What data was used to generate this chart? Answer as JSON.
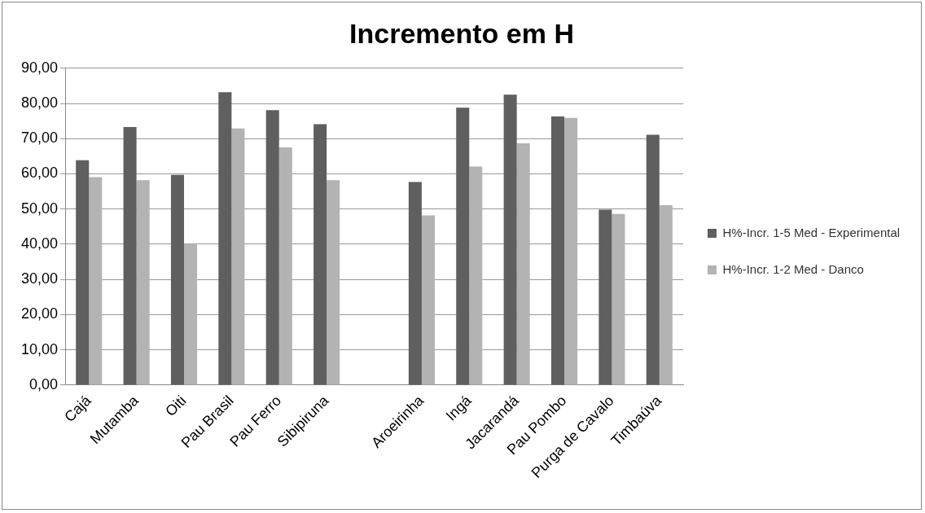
{
  "chart_data": {
    "type": "bar",
    "title": "Incremento em H",
    "categories": [
      "Cajá",
      "Mutamba",
      "Oiti",
      "Pau Brasil",
      "Pau Ferro",
      "Sibipiruna",
      null,
      "Aroeirinha",
      "Ingá",
      "Jacarandá",
      "Pau Pombo",
      "Purga de Cavalo",
      "Timbaúva"
    ],
    "series": [
      {
        "name": "H%-Incr. 1-5 Med - Experimental",
        "color": "#5f5f5f",
        "values": [
          63.9,
          73.3,
          59.7,
          83.2,
          78.1,
          74.1,
          null,
          57.7,
          78.8,
          82.5,
          76.3,
          49.8,
          71.1
        ]
      },
      {
        "name": "H%-Incr. 1-2 Med - Danco",
        "color": "#b3b3b3",
        "values": [
          59.1,
          58.2,
          40.3,
          72.9,
          67.5,
          58.2,
          null,
          48.2,
          62.1,
          68.7,
          75.9,
          48.6,
          51.1
        ]
      }
    ],
    "ylim": [
      0,
      90
    ],
    "yticks": [
      {
        "value": 0,
        "label": "0,00"
      },
      {
        "value": 10,
        "label": "10,00"
      },
      {
        "value": 20,
        "label": "20,00"
      },
      {
        "value": 30,
        "label": "30,00"
      },
      {
        "value": 40,
        "label": "40,00"
      },
      {
        "value": 50,
        "label": "50,00"
      },
      {
        "value": 60,
        "label": "60,00"
      },
      {
        "value": 70,
        "label": "70,00"
      },
      {
        "value": 80,
        "label": "80,00"
      },
      {
        "value": 90,
        "label": "90,00"
      }
    ],
    "grid": "y",
    "legend": "right"
  }
}
